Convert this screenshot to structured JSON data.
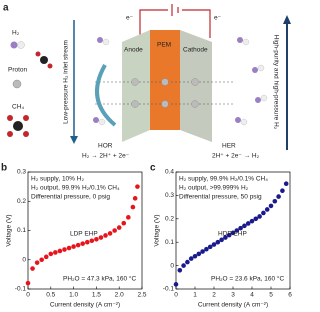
{
  "diagram": {
    "panel": "a",
    "h2": "H₂",
    "proton": "Proton",
    "ch4": "CH₄",
    "inlet": "Low-pressure H₂ inlet stream",
    "outlet": "High-purity and high-pressure H₂",
    "anode": "Anode",
    "pem": "PEM",
    "cathode": "Cathode",
    "electron_left": "e⁻",
    "electron_right": "e⁻",
    "hor": "HOR",
    "hor_eq": "H₂ → 2H⁺ + 2e⁻",
    "her": "HER",
    "her_eq": "2H⁺ + 2e⁻ → H₂"
  },
  "chart_data": [
    {
      "type": "scatter",
      "panel": "b",
      "xlabel": "Current density (A cm⁻²)",
      "ylabel": "Voltage (V)",
      "annotations": [
        "H₂ supply, 10% H₂",
        "H₂ output, 99.9% H₂/0.1% CH₄",
        "Differential pressure, 0 psig",
        "PH₂O = 47.3 kPa, 160 °C"
      ],
      "x": [
        0,
        0.1,
        0.2,
        0.3,
        0.4,
        0.5,
        0.6,
        0.7,
        0.8,
        0.9,
        1.0,
        1.1,
        1.2,
        1.3,
        1.4,
        1.5,
        1.6,
        1.7,
        1.8,
        1.9,
        2.0,
        2.1,
        2.2,
        2.3,
        2.35,
        2.4
      ],
      "series": [
        {
          "name": "LDP EHP",
          "color": "#e8141b",
          "values": [
            -0.08,
            -0.03,
            -0.01,
            0.0,
            0.01,
            0.02,
            0.025,
            0.03,
            0.035,
            0.04,
            0.045,
            0.05,
            0.055,
            0.06,
            0.065,
            0.07,
            0.076,
            0.083,
            0.09,
            0.1,
            0.11,
            0.125,
            0.145,
            0.18,
            0.21,
            0.25
          ]
        }
      ],
      "xlim": [
        0,
        2.5
      ],
      "ylim": [
        -0.1,
        0.3
      ],
      "xticks": [
        0,
        0.5,
        {
          "value": 1,
          "label": "1.0"
        },
        1.5,
        {
          "value": 2,
          "label": "2.0"
        },
        2.5
      ],
      "yticks": [
        -0.1,
        0,
        0.1,
        0.2,
        0.3
      ]
    },
    {
      "type": "scatter",
      "panel": "c",
      "xlabel": "Current density (A cm⁻²)",
      "ylabel": "Voltage (V)",
      "annotations": [
        "H₂ supply, 99.9% H₂/0.1% CH₄",
        "H₂ output, >99.999% H₂",
        "Differential pressure, 50 psig",
        "PH₂O = 23.6 kPa, 160 °C"
      ],
      "x": [
        0,
        0.2,
        0.4,
        0.6,
        0.8,
        1.0,
        1.2,
        1.4,
        1.6,
        1.8,
        2.0,
        2.2,
        2.4,
        2.6,
        2.8,
        3.0,
        3.2,
        3.4,
        3.6,
        3.8,
        4.0,
        4.2,
        4.4,
        4.6,
        4.8,
        5.0,
        5.2,
        5.4,
        5.6,
        5.8
      ],
      "series": [
        {
          "name": "HDP EHP",
          "color": "#1a1a8c",
          "values": [
            -0.08,
            -0.02,
            0.0,
            0.015,
            0.03,
            0.04,
            0.05,
            0.06,
            0.07,
            0.08,
            0.09,
            0.1,
            0.11,
            0.12,
            0.13,
            0.14,
            0.15,
            0.16,
            0.17,
            0.18,
            0.19,
            0.2,
            0.21,
            0.225,
            0.24,
            0.255,
            0.275,
            0.295,
            0.32,
            0.35
          ]
        }
      ],
      "xlim": [
        0,
        6
      ],
      "ylim": [
        -0.1,
        0.4
      ],
      "xticks": [
        0,
        1,
        2,
        3,
        4,
        5,
        6
      ],
      "yticks": [
        -0.1,
        0,
        0.1,
        0.2,
        0.3,
        0.4
      ]
    }
  ]
}
